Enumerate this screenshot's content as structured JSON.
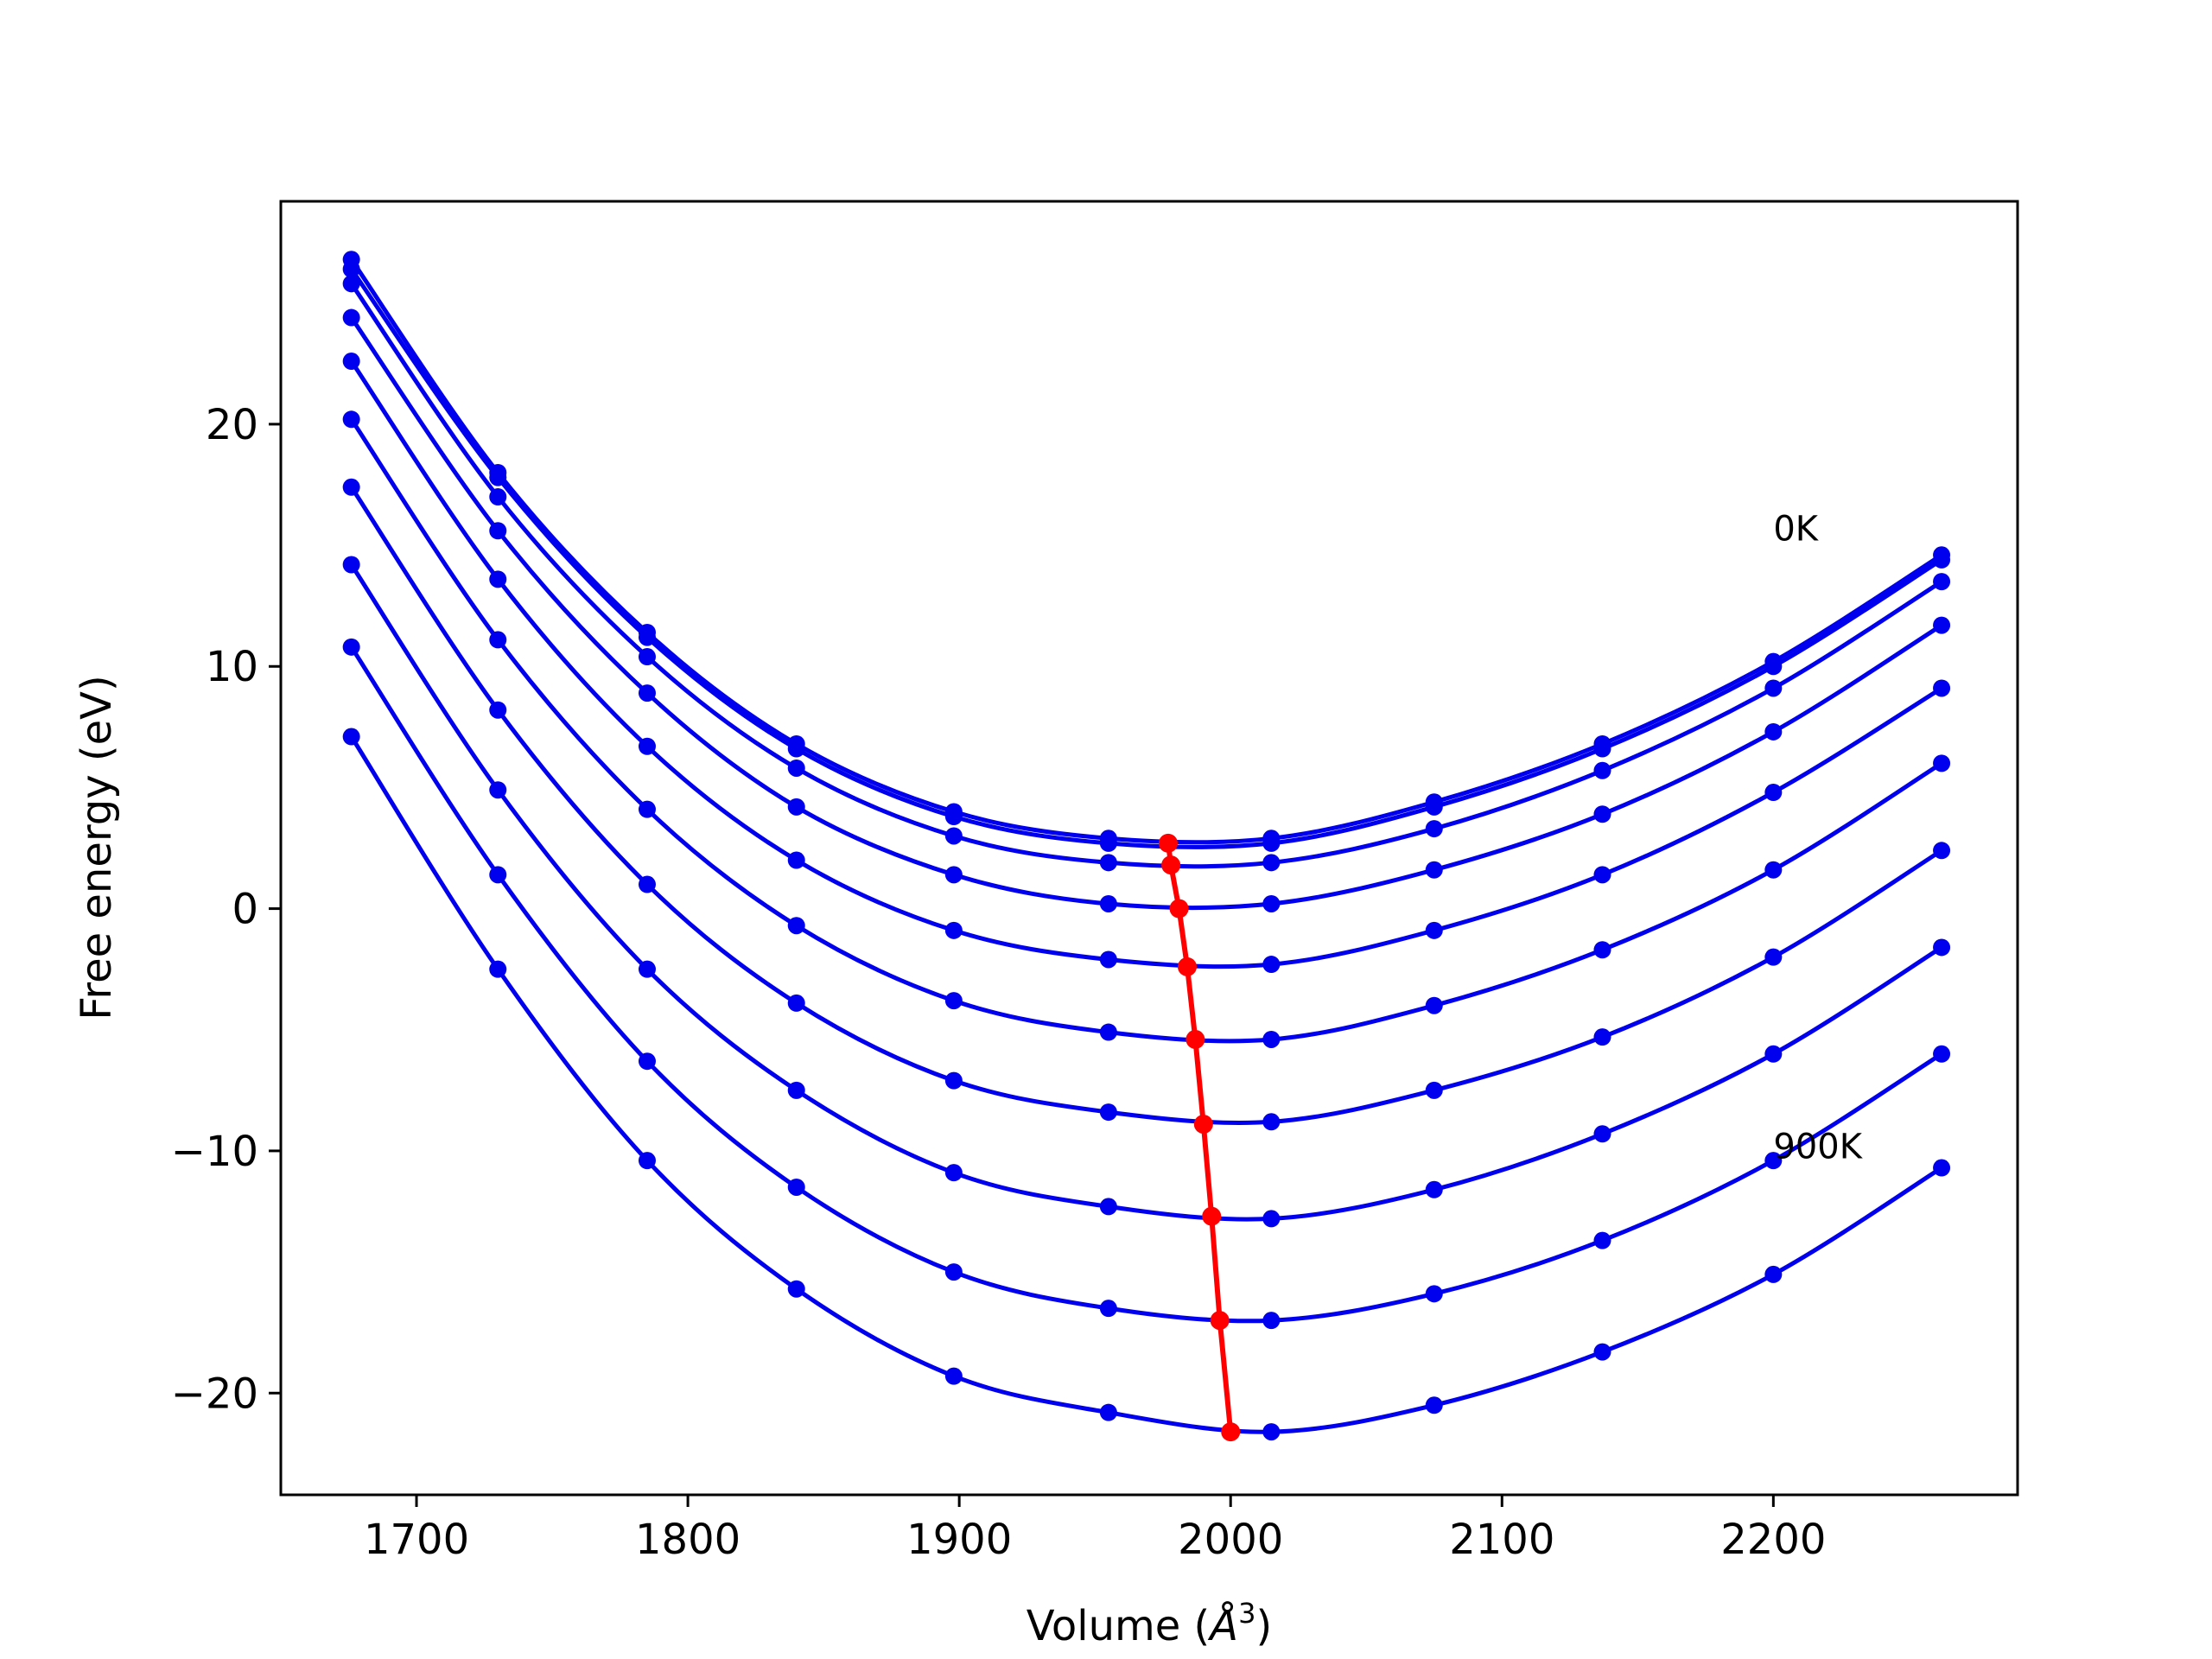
{
  "chart_data": {
    "type": "line",
    "title": "",
    "xlabel": "Volume (",
    "xlabel_unit": "Å",
    "xlabel_exponent": "3",
    "xlabel_close": ")",
    "ylabel": "Free energy (eV)",
    "xlim": [
      1650,
      2290
    ],
    "ylim": [
      -24.2,
      29.2
    ],
    "xticks": [
      1700,
      1800,
      1900,
      2000,
      2100,
      2200
    ],
    "yticks": [
      20,
      10,
      0,
      -10,
      -20
    ],
    "ytick_labels": [
      "20",
      "10",
      "0",
      "−10",
      "−20"
    ],
    "grid": false,
    "legend": "none",
    "annotations": [
      {
        "text": "0K",
        "x": 2200,
        "y": 15.2
      },
      {
        "text": "900K",
        "x": 2200,
        "y": -10.3
      }
    ],
    "series_color": "#0000ee",
    "minima_color": "#ff0000",
    "volumes": [
      1676,
      1730,
      1785,
      1840,
      1898,
      1955,
      2015,
      2075,
      2137,
      2200,
      2262
    ],
    "series": [
      {
        "values": [
          26.8,
          18.0,
          11.4,
          6.8,
          4.0,
          2.9,
          2.9,
          4.4,
          6.8,
          10.2,
          14.6
        ]
      },
      {
        "values": [
          26.4,
          17.8,
          11.2,
          6.6,
          3.8,
          2.7,
          2.7,
          4.2,
          6.6,
          10.0,
          14.4
        ]
      },
      {
        "values": [
          25.8,
          17.0,
          10.4,
          5.8,
          3.0,
          1.9,
          1.9,
          3.3,
          5.7,
          9.1,
          13.5
        ]
      },
      {
        "values": [
          24.4,
          15.6,
          8.9,
          4.2,
          1.4,
          0.2,
          0.2,
          1.6,
          3.9,
          7.3,
          11.7
        ]
      },
      {
        "values": [
          22.6,
          13.6,
          6.7,
          2.0,
          -0.9,
          -2.1,
          -2.3,
          -0.9,
          1.4,
          4.8,
          9.1
        ]
      },
      {
        "values": [
          20.2,
          11.1,
          4.1,
          -0.7,
          -3.8,
          -5.1,
          -5.4,
          -4.0,
          -1.7,
          1.6,
          6.0
        ]
      },
      {
        "values": [
          17.4,
          8.2,
          1.0,
          -3.9,
          -7.1,
          -8.4,
          -8.8,
          -7.5,
          -5.3,
          -2.0,
          2.4
        ]
      },
      {
        "values": [
          14.2,
          4.9,
          -2.5,
          -7.5,
          -10.9,
          -12.3,
          -12.8,
          -11.6,
          -9.3,
          -6.0,
          -1.6
        ]
      },
      {
        "values": [
          10.8,
          1.4,
          -6.3,
          -11.5,
          -15.0,
          -16.5,
          -17.0,
          -15.9,
          -13.7,
          -10.4,
          -6.0
        ]
      },
      {
        "values": [
          7.1,
          -2.5,
          -10.4,
          -15.7,
          -19.3,
          -20.8,
          -21.6,
          -20.5,
          -18.3,
          -15.1,
          -10.7
        ]
      }
    ],
    "minima": {
      "x": [
        1977,
        1978,
        1981,
        1984,
        1987,
        1990,
        1993,
        1996,
        2000
      ],
      "y": [
        2.7,
        1.8,
        0.0,
        -2.4,
        -5.4,
        -8.9,
        -12.7,
        -17.0,
        -21.6
      ]
    }
  }
}
